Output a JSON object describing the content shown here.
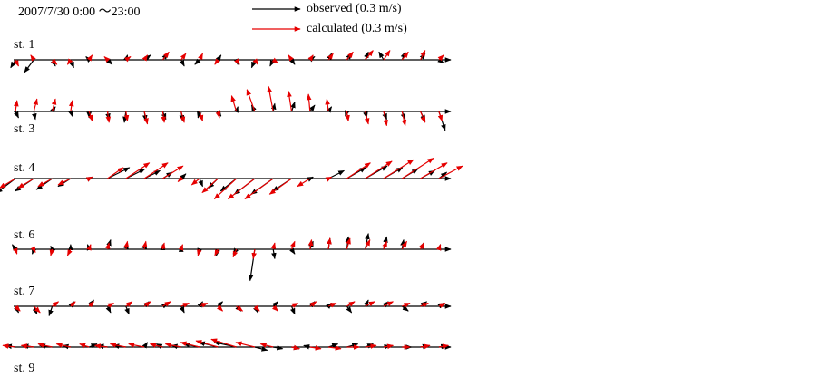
{
  "chart_data": {
    "type": "quiver",
    "title": "2007/7/30 0:00 ～23:00",
    "series": [
      {
        "name": "observed (0.3 m/s)",
        "color": "#000000"
      },
      {
        "name": "calculated (0.3 m/s)",
        "color": "#e60000"
      }
    ],
    "stations": [
      {
        "name": "st. 1",
        "observed": {
          "u": [
            -0.03,
            -0.06,
            0.02,
            0.02,
            -0.02,
            0.03,
            0.01,
            0.04,
            0.03,
            0.02,
            -0.03,
            0.02,
            0.01,
            -0.02,
            -0.02,
            0.02,
            0.03,
            0.02,
            0.03,
            0.02,
            -0.03,
            0.02,
            0.03,
            0.03
          ],
          "v": [
            -0.05,
            -0.08,
            -0.04,
            -0.05,
            0.02,
            -0.03,
            0.03,
            0.03,
            0.04,
            -0.04,
            -0.03,
            0.03,
            -0.03,
            -0.05,
            -0.04,
            -0.03,
            0.02,
            0.04,
            0.04,
            0.05,
            0.05,
            0.05,
            0.04,
            -0.02
          ]
        },
        "calculated": {
          "u": [
            0.02,
            -0.02,
            0.03,
            -0.02,
            0.02,
            -0.02,
            0.03,
            0.02,
            0.04,
            0.03,
            0.02,
            -0.02,
            0.02,
            0.02,
            0.03,
            -0.02,
            0.02,
            0.03,
            0.04,
            0.05,
            0.04,
            0.04,
            0.03,
            0.03
          ],
          "v": [
            -0.04,
            0.03,
            -0.03,
            -0.03,
            0.03,
            0.02,
            0.02,
            0.03,
            0.05,
            0.04,
            0.04,
            -0.03,
            -0.03,
            -0.03,
            -0.02,
            0.03,
            0.03,
            0.04,
            0.05,
            0.06,
            0.06,
            0.05,
            0.06,
            0.03
          ]
        }
      },
      {
        "name": "st. 3",
        "observed": {
          "u": [
            0.02,
            0.01,
            0.02,
            0.01,
            0,
            0.01,
            -0.01,
            0.01,
            0.02,
            0.01,
            -0.01,
            0.02,
            0.01,
            -0.02,
            0.01,
            0.02,
            0.03,
            0.02,
            -0.01,
            0.01,
            0.02,
            0.02,
            0.03,
            0.04
          ],
          "v": [
            -0.04,
            -0.05,
            0.03,
            -0.03,
            -0.04,
            -0.05,
            -0.07,
            -0.06,
            -0.05,
            -0.06,
            -0.04,
            -0.03,
            0.03,
            0.04,
            0.05,
            0.06,
            0.04,
            0.03,
            -0.03,
            -0.04,
            -0.05,
            -0.05,
            -0.06,
            -0.12
          ]
        },
        "calculated": {
          "u": [
            0.01,
            0.02,
            0.02,
            0.01,
            0.02,
            0.01,
            0.01,
            0.02,
            0.01,
            0.02,
            0.02,
            0.01,
            -0.03,
            -0.05,
            -0.03,
            -0.02,
            -0.01,
            -0.01,
            0.01,
            0.02,
            0.02,
            0.02,
            0.03,
            0.02
          ],
          "v": [
            0.07,
            0.08,
            0.08,
            0.07,
            -0.06,
            -0.07,
            -0.06,
            -0.08,
            -0.07,
            -0.07,
            -0.06,
            -0.04,
            0.1,
            0.14,
            0.16,
            0.13,
            0.11,
            0.08,
            -0.06,
            -0.08,
            -0.09,
            -0.09,
            -0.07,
            -0.06
          ]
        }
      },
      {
        "name": "st. 4",
        "observed": {
          "u": [
            -0.12,
            -0.12,
            -0.1,
            -0.08,
            0.02,
            0.14,
            0.12,
            0.1,
            0.06,
            0.03,
            0.02,
            -0.06,
            -0.1,
            -0.13,
            -0.14,
            -0.12,
            0.02,
            0.1,
            0.12,
            0.14,
            0.12,
            0.1,
            0.09,
            0.05
          ],
          "v": [
            -0.09,
            -0.08,
            -0.07,
            -0.05,
            0.01,
            0.07,
            0.06,
            0.05,
            0.04,
            0.03,
            -0.05,
            -0.06,
            -0.08,
            -0.1,
            -0.1,
            -0.08,
            0.01,
            0.05,
            0.07,
            0.08,
            0.07,
            0.06,
            0.05,
            0.04
          ]
        },
        "calculated": {
          "u": [
            -0.1,
            -0.1,
            -0.09,
            -0.08,
            0.02,
            0.1,
            0.15,
            0.15,
            0.13,
            -0.02,
            -0.05,
            -0.1,
            -0.14,
            -0.17,
            -0.18,
            -0.14,
            -0.08,
            0.02,
            0.15,
            0.17,
            0.19,
            0.2,
            0.17,
            0.15
          ],
          "v": [
            -0.06,
            -0.06,
            -0.05,
            -0.04,
            0.01,
            0.07,
            0.1,
            0.1,
            0.08,
            -0.02,
            -0.04,
            -0.09,
            -0.13,
            -0.13,
            -0.13,
            -0.1,
            -0.05,
            0.01,
            0.1,
            0.11,
            0.12,
            0.13,
            0.1,
            0.08
          ]
        }
      },
      {
        "name": "st. 6",
        "observed": {
          "u": [
            -0.02,
            -0.01,
            -0.01,
            0,
            -0.01,
            0.02,
            0.01,
            0.01,
            0,
            0,
            -0.01,
            -0.01,
            -0.02,
            -0.03,
            0.01,
            0.02,
            0.02,
            0.01,
            0.01,
            0.02,
            0.02,
            0.01,
            0.02,
            0.01
          ],
          "v": [
            0.03,
            -0.03,
            0.02,
            0.03,
            0.03,
            0.06,
            0.04,
            0.04,
            0.03,
            0.02,
            -0.03,
            -0.04,
            -0.03,
            -0.2,
            -0.06,
            -0.03,
            0.05,
            0.07,
            0.08,
            0.1,
            0.08,
            0.06,
            0.04,
            0.03
          ]
        },
        "calculated": {
          "u": [
            0.01,
            0.01,
            -0.01,
            -0.02,
            0.01,
            0.01,
            0.01,
            0.01,
            0.01,
            0.01,
            -0.01,
            -0.02,
            -0.02,
            -0.01,
            0.01,
            0.02,
            0.01,
            0.01,
            0.02,
            0.03,
            0.02,
            0.03,
            0.02,
            0.01
          ],
          "v": [
            -0.03,
            -0.02,
            -0.04,
            -0.04,
            0.03,
            0.04,
            0.05,
            0.05,
            0.04,
            0.03,
            -0.04,
            -0.04,
            -0.05,
            -0.06,
            0.04,
            0.05,
            0.06,
            0.07,
            0.07,
            0.06,
            0.05,
            0.05,
            0.04,
            0.03
          ]
        }
      },
      {
        "name": "st. 7",
        "observed": {
          "u": [
            0.02,
            0.02,
            -0.02,
            0.02,
            0.03,
            0.02,
            0.02,
            0.03,
            0.03,
            0.02,
            0.02,
            0.03,
            0.03,
            0.02,
            0.03,
            0.02,
            0.03,
            0.02,
            0.03,
            0.02,
            0.03,
            0.04,
            0.04,
            0.03
          ],
          "v": [
            -0.04,
            -0.05,
            -0.06,
            0.03,
            0.04,
            -0.04,
            -0.05,
            0.03,
            0.02,
            -0.04,
            0.03,
            0.03,
            -0.03,
            -0.04,
            0.03,
            -0.05,
            0.03,
            0.02,
            -0.04,
            0.04,
            0.03,
            -0.03,
            0.03,
            0.02
          ]
        },
        "calculated": {
          "u": [
            0.03,
            0.04,
            0.04,
            0.03,
            0.03,
            0.04,
            0.04,
            0.04,
            0.05,
            0.05,
            0.05,
            0.03,
            0.04,
            0.03,
            0.03,
            0.04,
            0.04,
            0.05,
            0.05,
            0.06,
            0.06,
            0.05,
            0.05,
            0.04
          ],
          "v": [
            -0.03,
            -0.04,
            0.03,
            0.03,
            0.03,
            0.02,
            0.03,
            0.03,
            0.03,
            0.02,
            0.02,
            -0.03,
            -0.03,
            -0.03,
            -0.03,
            0.02,
            0.03,
            0.02,
            0.03,
            0.03,
            0.03,
            0.02,
            0.02,
            0.02
          ]
        }
      },
      {
        "name": "st. 9",
        "observed": {
          "u": [
            -0.06,
            -0.07,
            -0.08,
            -0.05,
            0.05,
            -0.06,
            -0.08,
            0.02,
            -0.04,
            -0.06,
            -0.1,
            -0.12,
            -0.14,
            0.08,
            0.06,
            0.05,
            -0.04,
            0.06,
            0.07,
            0.05,
            0.04,
            0.06,
            0.05,
            0.05
          ],
          "v": [
            0.01,
            0.01,
            0.01,
            0.01,
            0.02,
            0.01,
            0.01,
            0.03,
            0.02,
            0.01,
            0.02,
            0.03,
            0.03,
            -0.02,
            -0.01,
            -0.01,
            0.01,
            0.02,
            0.02,
            0.02,
            0.01,
            0,
            0.01,
            0.01
          ]
        },
        "calculated": {
          "u": [
            -0.08,
            -0.08,
            -0.09,
            -0.09,
            -0.06,
            -0.08,
            -0.1,
            -0.1,
            -0.08,
            -0.1,
            -0.12,
            -0.14,
            -0.16,
            -0.12,
            -0.08,
            0.05,
            0.07,
            0.08,
            0.08,
            0.07,
            0.06,
            0.05,
            0.06,
            0.06
          ],
          "v": [
            0.01,
            0.01,
            0.02,
            0.02,
            0.02,
            0.01,
            0.02,
            0.02,
            0.02,
            0.02,
            0.03,
            0.04,
            0.05,
            0.03,
            0.02,
            -0.01,
            -0.01,
            -0.01,
            0,
            0.01,
            0.01,
            0,
            0.01,
            0.01
          ]
        }
      }
    ]
  }
}
